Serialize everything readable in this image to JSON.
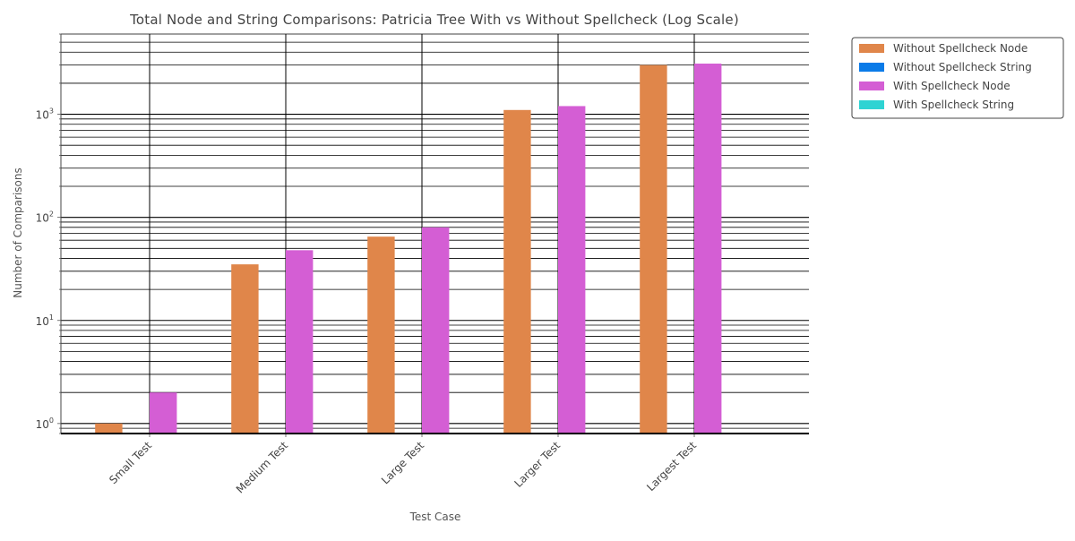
{
  "chart_data": {
    "type": "bar",
    "title": "Total Node and String Comparisons: Patricia Tree With vs Without Spellcheck (Log Scale)",
    "xlabel": "Test Case",
    "ylabel": "Number of Comparisons",
    "yscale": "log",
    "ylim": [
      0.8,
      6000
    ],
    "grid": true,
    "legend_position": "outside top-right",
    "categories": [
      "Small Test",
      "Medium Test",
      "Large Test",
      "Larger Test",
      "Largest Test"
    ],
    "y_ticks": [
      {
        "value": 1,
        "base": "10",
        "exp": "0"
      },
      {
        "value": 10,
        "base": "10",
        "exp": "1"
      },
      {
        "value": 100,
        "base": "10",
        "exp": "2"
      },
      {
        "value": 1000,
        "base": "10",
        "exp": "3"
      }
    ],
    "series": [
      {
        "name": "Without Spellcheck Node",
        "color": "#e0864a",
        "values": [
          1,
          35,
          65,
          1100,
          3000
        ]
      },
      {
        "name": "Without Spellcheck String",
        "color": "#0a7be8",
        "values": [
          0,
          0,
          0,
          0,
          0
        ]
      },
      {
        "name": "With Spellcheck Node",
        "color": "#d45ed4",
        "values": [
          2,
          48,
          80,
          1200,
          3100
        ]
      },
      {
        "name": "With Spellcheck String",
        "color": "#2ed3d3",
        "values": [
          0,
          0,
          0,
          0,
          0
        ]
      }
    ]
  }
}
